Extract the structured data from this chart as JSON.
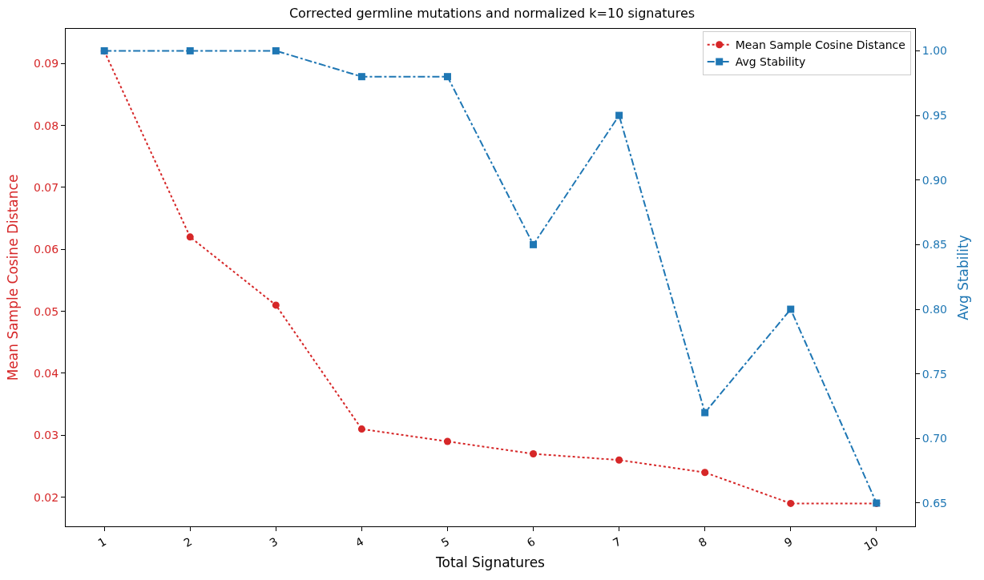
{
  "chart_data": {
    "type": "line",
    "title": "Corrected germline mutations and normalized k=10 signatures",
    "xlabel": "Total Signatures",
    "ylabel": "Mean Sample Cosine Distance",
    "y2label": "Avg Stability",
    "x": [
      1,
      2,
      3,
      4,
      5,
      6,
      7,
      8,
      9,
      10
    ],
    "xlim": [
      0.55,
      10.45
    ],
    "xticks": [
      1,
      2,
      3,
      4,
      5,
      6,
      7,
      8,
      9,
      10
    ],
    "ylim": [
      0.0153,
      0.0956
    ],
    "yticks": [
      0.02,
      0.03,
      0.04,
      0.05,
      0.06,
      0.07,
      0.08,
      0.09
    ],
    "y2lim": [
      0.632,
      1.017
    ],
    "y2ticks": [
      0.65,
      {
        "value": 0.7,
        "label": "0.70"
      },
      0.75,
      {
        "value": 0.8,
        "label": "0.80"
      },
      0.85,
      {
        "value": 0.9,
        "label": "0.90"
      },
      0.95,
      {
        "value": 1.0,
        "label": "1.00"
      }
    ],
    "series": [
      {
        "name": "Mean Sample Cosine Distance",
        "color": "#d62728",
        "marker": "circle",
        "line_style": "dotted",
        "values": [
          0.092,
          0.062,
          0.051,
          0.031,
          0.029,
          0.027,
          0.026,
          0.024,
          0.019,
          0.019
        ]
      },
      {
        "name": "Avg Stability",
        "color": "#1f77b4",
        "marker": "square",
        "line_style": "dashdot",
        "axis": "y2",
        "values": [
          1.0,
          1.0,
          1.0,
          0.98,
          0.98,
          0.85,
          0.95,
          0.72,
          0.8,
          0.65
        ]
      }
    ],
    "legend": "top right"
  }
}
